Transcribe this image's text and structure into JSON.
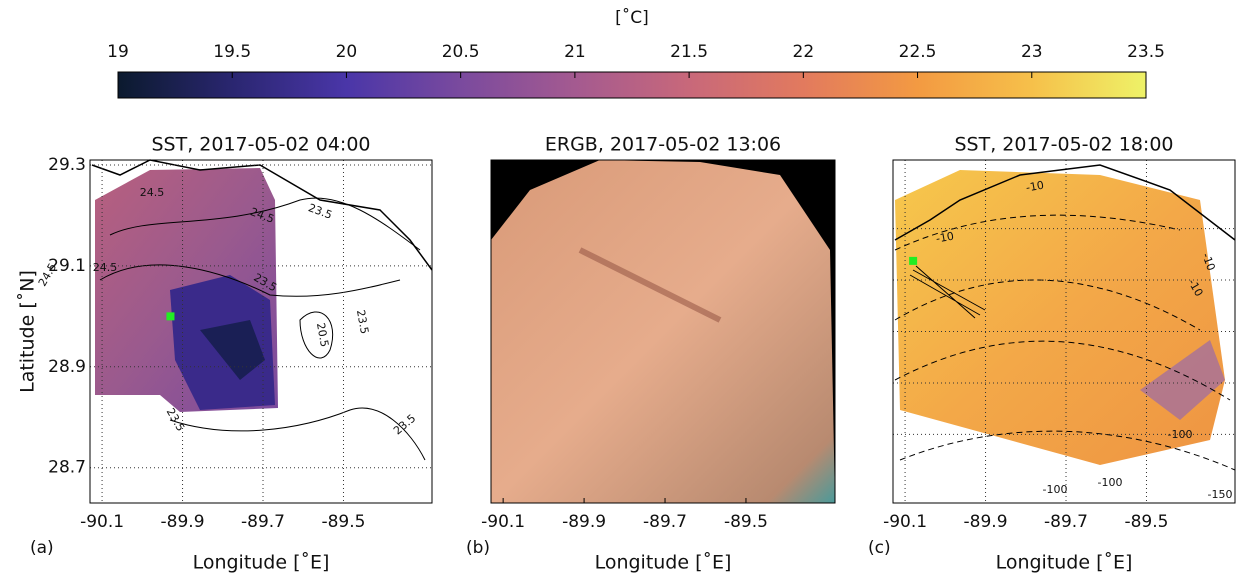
{
  "chart_data": [
    {
      "type": "colorbar",
      "label": "[˚C]",
      "xlim": [
        19,
        23.5
      ],
      "xticks": [
        19,
        19.5,
        20,
        20.5,
        21,
        21.5,
        22,
        22.5,
        23,
        23.5
      ],
      "colors": [
        "#0b1a2e",
        "#2a2670",
        "#4a36a8",
        "#7a4a9e",
        "#a45a90",
        "#c8687a",
        "#e27a5e",
        "#f39a42",
        "#f6c04a",
        "#eef268"
      ]
    },
    {
      "type": "map",
      "panel": "(a)",
      "title": "SST, 2017-05-02 04:00",
      "xlabel": "Longitude [˚E]",
      "ylabel": "Latitude [˚N]",
      "xlim": [
        -90.13,
        -89.28
      ],
      "ylim": [
        28.63,
        29.31
      ],
      "xticks": [
        -90.1,
        -89.9,
        -89.7,
        -89.5
      ],
      "yticks": [
        29.3,
        29.1,
        28.9,
        28.7
      ],
      "grid": true,
      "contour_labels": [
        "24.5",
        "24.5",
        "24.5",
        "24.5",
        "23.5",
        "23.5",
        "23.5",
        "23.5",
        "20.5",
        "23.5"
      ],
      "marker": {
        "x": -89.93,
        "y": 29.0,
        "color": "#22ee22"
      }
    },
    {
      "type": "image",
      "panel": "(b)",
      "title": "ERGB, 2017-05-02 13:06",
      "xlabel": "Longitude [˚E]",
      "xlim": [
        -90.13,
        -89.28
      ],
      "ylim": [
        28.63,
        29.31
      ],
      "xticks": [
        -90.1,
        -89.9,
        -89.7,
        -89.5
      ],
      "grid": false
    },
    {
      "type": "map",
      "panel": "(c)",
      "title": "SST, 2017-05-02 18:00",
      "xlabel": "Longitude [˚E]",
      "xlim": [
        -90.13,
        -89.28
      ],
      "ylim": [
        28.63,
        29.31
      ],
      "xticks": [
        -90.1,
        -89.9,
        -89.7,
        -89.5
      ],
      "grid": true,
      "contour_labels": [
        "-10",
        "-10",
        "-10",
        "-10",
        "-100",
        "-100",
        "-100",
        "-150"
      ],
      "marker": {
        "x": -90.08,
        "y": 29.11,
        "color": "#22ee22"
      }
    }
  ]
}
